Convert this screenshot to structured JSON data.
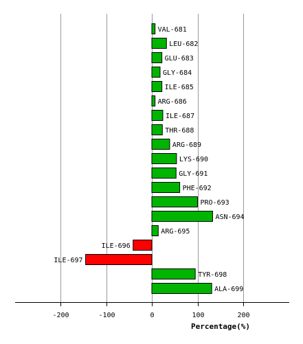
{
  "chart_data": {
    "type": "bar",
    "orientation": "horizontal",
    "categories": [
      "VAL-681",
      "LEU-682",
      "GLU-683",
      "GLY-684",
      "ILE-685",
      "ARG-686",
      "ILE-687",
      "THR-688",
      "ARG-689",
      "LYS-690",
      "GLY-691",
      "PHE-692",
      "PRO-693",
      "ASN-694",
      "ARG-695",
      "ILE-696",
      "ILE-697",
      "TYR-698",
      "ALA-699"
    ],
    "values": [
      7,
      32,
      22,
      18,
      22,
      7,
      24,
      23,
      39,
      54,
      53,
      61,
      100,
      133,
      14,
      -41,
      -145,
      95,
      131
    ],
    "xlabel": "Percentage(%)",
    "xlim": [
      -300,
      300
    ],
    "xticks": [
      -200,
      -100,
      0,
      100,
      200
    ],
    "grid": true,
    "colors": {
      "positive": "#00b400",
      "negative": "#ff0000",
      "grid": "#999999",
      "axis": "#000000"
    }
  }
}
